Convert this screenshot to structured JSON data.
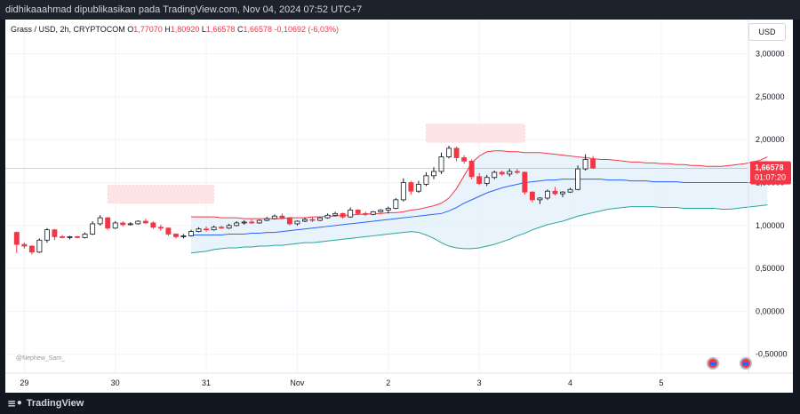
{
  "header": {
    "publisher": "didhikaaahmad dipublikasikan pada TradingView.com, Nov 04, 2024 07:52 UTC+7"
  },
  "legend": {
    "symbol": "Grass / USD, 2h, CRYPTOCOM",
    "o_label": "O",
    "o_value": "1,77070",
    "h_label": "H",
    "h_value": "1,80920",
    "l_label": "L",
    "l_value": "1,66578",
    "c_label": "C",
    "c_value": "1,66578",
    "change": "-0,10692 (-6,03%)"
  },
  "currency_button": "USD",
  "watermark": "@Nephew_Sam_",
  "price_tag": {
    "price": "1,66578",
    "countdown": "01:07:20"
  },
  "footer": {
    "brand": "TradingView"
  },
  "colors": {
    "up": "#26a69a",
    "down": "#f23645",
    "mid": "#2962ff",
    "upper_band": "#f23645",
    "lower_band": "#26a69a",
    "band_fill": "#e3f0fa"
  },
  "chart_data": {
    "type": "candlestick",
    "ytick_labels": [
      "3,00000",
      "2,50000",
      "2,00000",
      "1,50000",
      "1,00000",
      "0,50000",
      "0,00000",
      "-0,50000"
    ],
    "yticks": [
      3.0,
      2.5,
      2.0,
      1.5,
      1.0,
      0.5,
      0.0,
      -0.5
    ],
    "ylim": [
      -0.72,
      3.4
    ],
    "xtick_labels": [
      "29",
      "30",
      "31",
      "Nov",
      "2",
      "3",
      "4",
      "5"
    ],
    "xtick_index": [
      1,
      13,
      25,
      37,
      49,
      61,
      73,
      85
    ],
    "xlim": [
      -1.5,
      96.5
    ],
    "candles": [
      [
        0.92,
        0.93,
        0.68,
        0.78
      ],
      [
        0.78,
        0.8,
        0.73,
        0.76
      ],
      [
        0.76,
        0.77,
        0.66,
        0.69
      ],
      [
        0.69,
        0.85,
        0.68,
        0.83
      ],
      [
        0.83,
        0.97,
        0.8,
        0.95
      ],
      [
        0.95,
        0.96,
        0.83,
        0.87
      ],
      [
        0.87,
        0.89,
        0.85,
        0.86
      ],
      [
        0.86,
        0.88,
        0.84,
        0.87
      ],
      [
        0.87,
        0.88,
        0.85,
        0.86
      ],
      [
        0.86,
        0.92,
        0.85,
        0.9
      ],
      [
        0.9,
        1.05,
        0.89,
        1.02
      ],
      [
        1.02,
        1.12,
        1.0,
        1.09
      ],
      [
        1.09,
        1.1,
        0.95,
        0.97
      ],
      [
        0.97,
        1.05,
        0.96,
        1.03
      ],
      [
        1.03,
        1.05,
        0.99,
        1.01
      ],
      [
        1.01,
        1.04,
        1.0,
        1.02
      ],
      [
        1.02,
        1.06,
        1.01,
        1.05
      ],
      [
        1.05,
        1.08,
        1.02,
        1.03
      ],
      [
        1.03,
        1.05,
        0.96,
        0.98
      ],
      [
        0.98,
        1.01,
        0.94,
        0.97
      ],
      [
        0.97,
        0.98,
        0.88,
        0.9
      ],
      [
        0.9,
        0.91,
        0.85,
        0.87
      ],
      [
        0.87,
        0.9,
        0.85,
        0.88
      ],
      [
        0.88,
        0.95,
        0.87,
        0.93
      ],
      [
        0.93,
        0.98,
        0.92,
        0.96
      ],
      [
        0.96,
        0.99,
        0.93,
        0.95
      ],
      [
        0.95,
        1.0,
        0.94,
        0.98
      ],
      [
        0.98,
        1.0,
        0.96,
        0.97
      ],
      [
        0.97,
        1.02,
        0.96,
        1.0
      ],
      [
        1.0,
        1.05,
        0.99,
        1.03
      ],
      [
        1.03,
        1.06,
        1.01,
        1.04
      ],
      [
        1.04,
        1.07,
        1.02,
        1.03
      ],
      [
        1.03,
        1.07,
        1.02,
        1.06
      ],
      [
        1.06,
        1.1,
        1.05,
        1.08
      ],
      [
        1.08,
        1.13,
        1.07,
        1.11
      ],
      [
        1.11,
        1.14,
        1.08,
        1.09
      ],
      [
        1.09,
        1.1,
        1.0,
        1.02
      ],
      [
        1.02,
        1.06,
        1.0,
        1.05
      ],
      [
        1.05,
        1.09,
        1.04,
        1.07
      ],
      [
        1.07,
        1.1,
        1.04,
        1.06
      ],
      [
        1.06,
        1.1,
        1.05,
        1.09
      ],
      [
        1.09,
        1.14,
        1.08,
        1.12
      ],
      [
        1.12,
        1.16,
        1.11,
        1.14
      ],
      [
        1.14,
        1.15,
        1.08,
        1.1
      ],
      [
        1.1,
        1.21,
        1.09,
        1.18
      ],
      [
        1.18,
        1.19,
        1.12,
        1.14
      ],
      [
        1.14,
        1.16,
        1.11,
        1.13
      ],
      [
        1.13,
        1.17,
        1.12,
        1.16
      ],
      [
        1.16,
        1.19,
        1.15,
        1.18
      ],
      [
        1.18,
        1.22,
        1.14,
        1.2
      ],
      [
        1.2,
        1.32,
        1.19,
        1.3
      ],
      [
        1.3,
        1.55,
        1.28,
        1.5
      ],
      [
        1.5,
        1.52,
        1.36,
        1.4
      ],
      [
        1.4,
        1.52,
        1.38,
        1.48
      ],
      [
        1.48,
        1.62,
        1.46,
        1.58
      ],
      [
        1.58,
        1.68,
        1.54,
        1.63
      ],
      [
        1.63,
        1.85,
        1.6,
        1.8
      ],
      [
        1.8,
        1.93,
        1.78,
        1.9
      ],
      [
        1.9,
        1.92,
        1.75,
        1.79
      ],
      [
        1.79,
        1.82,
        1.72,
        1.75
      ],
      [
        1.75,
        1.77,
        1.54,
        1.57
      ],
      [
        1.57,
        1.61,
        1.47,
        1.49
      ],
      [
        1.49,
        1.59,
        1.46,
        1.56
      ],
      [
        1.56,
        1.64,
        1.54,
        1.62
      ],
      [
        1.62,
        1.64,
        1.58,
        1.6
      ],
      [
        1.6,
        1.66,
        1.57,
        1.63
      ],
      [
        1.63,
        1.66,
        1.6,
        1.62
      ],
      [
        1.62,
        1.63,
        1.36,
        1.39
      ],
      [
        1.39,
        1.4,
        1.27,
        1.3
      ],
      [
        1.3,
        1.33,
        1.25,
        1.32
      ],
      [
        1.32,
        1.42,
        1.3,
        1.4
      ],
      [
        1.4,
        1.45,
        1.35,
        1.37
      ],
      [
        1.37,
        1.4,
        1.33,
        1.39
      ],
      [
        1.39,
        1.44,
        1.38,
        1.42
      ],
      [
        1.42,
        1.7,
        1.41,
        1.66
      ],
      [
        1.66,
        1.83,
        1.64,
        1.77
      ],
      [
        1.77,
        1.81,
        1.66,
        1.67
      ]
    ],
    "bb_upper": [
      1.1,
      1.1,
      1.1,
      1.1,
      1.09,
      1.09,
      1.09,
      1.08,
      1.08,
      1.08,
      1.08,
      1.08,
      1.08,
      1.09,
      1.09,
      1.09,
      1.1,
      1.1,
      1.11,
      1.11,
      1.12,
      1.12,
      1.13,
      1.13,
      1.14,
      1.14,
      1.15,
      1.15,
      1.16,
      1.18,
      1.19,
      1.21,
      1.23,
      1.26,
      1.32,
      1.43,
      1.58,
      1.73,
      1.81,
      1.86,
      1.87,
      1.87,
      1.86,
      1.86,
      1.85,
      1.85,
      1.85,
      1.84,
      1.83,
      1.82,
      1.81,
      1.8,
      1.79,
      1.78,
      1.77,
      1.77,
      1.76,
      1.75,
      1.74,
      1.74,
      1.73,
      1.73,
      1.72,
      1.72,
      1.71,
      1.71,
      1.7,
      1.7,
      1.69,
      1.69,
      1.69,
      1.7,
      1.71,
      1.72,
      1.74,
      1.76,
      1.8
    ],
    "bb_basis": [
      0.89,
      0.89,
      0.89,
      0.89,
      0.89,
      0.9,
      0.9,
      0.9,
      0.91,
      0.91,
      0.92,
      0.92,
      0.93,
      0.94,
      0.95,
      0.96,
      0.97,
      0.98,
      0.99,
      1.0,
      1.01,
      1.02,
      1.03,
      1.04,
      1.05,
      1.06,
      1.07,
      1.08,
      1.09,
      1.1,
      1.11,
      1.12,
      1.13,
      1.14,
      1.17,
      1.21,
      1.26,
      1.3,
      1.34,
      1.38,
      1.41,
      1.44,
      1.46,
      1.48,
      1.5,
      1.51,
      1.52,
      1.53,
      1.53,
      1.54,
      1.54,
      1.54,
      1.54,
      1.54,
      1.54,
      1.53,
      1.53,
      1.53,
      1.52,
      1.52,
      1.52,
      1.51,
      1.51,
      1.51,
      1.51,
      1.5,
      1.5,
      1.5,
      1.5,
      1.5,
      1.5,
      1.5,
      1.5,
      1.5,
      1.5,
      1.49,
      1.49
    ],
    "bb_lower": [
      0.68,
      0.69,
      0.7,
      0.72,
      0.73,
      0.74,
      0.74,
      0.75,
      0.75,
      0.76,
      0.76,
      0.77,
      0.77,
      0.78,
      0.79,
      0.8,
      0.8,
      0.81,
      0.82,
      0.83,
      0.84,
      0.85,
      0.86,
      0.87,
      0.88,
      0.89,
      0.9,
      0.91,
      0.92,
      0.93,
      0.92,
      0.89,
      0.85,
      0.8,
      0.76,
      0.74,
      0.73,
      0.73,
      0.74,
      0.76,
      0.78,
      0.81,
      0.84,
      0.88,
      0.91,
      0.95,
      0.98,
      1.01,
      1.03,
      1.05,
      1.08,
      1.11,
      1.13,
      1.15,
      1.17,
      1.19,
      1.2,
      1.21,
      1.22,
      1.22,
      1.22,
      1.22,
      1.21,
      1.21,
      1.21,
      1.2,
      1.2,
      1.2,
      1.2,
      1.2,
      1.19,
      1.19,
      1.2,
      1.21,
      1.22,
      1.23,
      1.24
    ],
    "bb_start_index": 23,
    "supply_zones": [
      {
        "x0": 12,
        "x1": 26,
        "y0": 1.26,
        "y1": 1.47
      },
      {
        "x0": 54,
        "x1": 67,
        "y0": 1.97,
        "y1": 2.18
      }
    ],
    "last_price": 1.66578
  }
}
